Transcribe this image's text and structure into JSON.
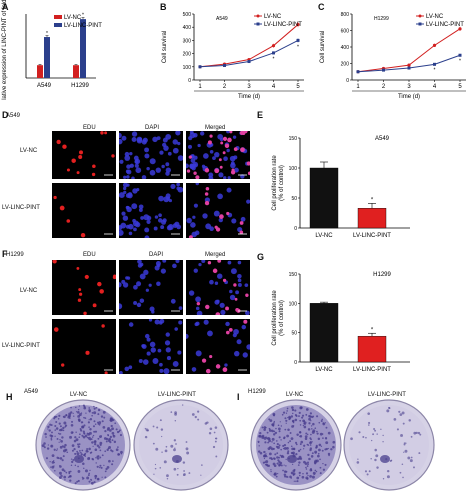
{
  "panel_letters": {
    "A": "A",
    "B": "B",
    "C": "C",
    "D": "D",
    "E": "E",
    "F": "F",
    "G": "G",
    "H": "H",
    "I": "I"
  },
  "micro_d": {
    "cell_line": "A549",
    "columns": [
      "EDU",
      "DAPI",
      "Merged"
    ],
    "rows": [
      "LV-NC",
      "LV-LINC-PINT"
    ]
  },
  "micro_f": {
    "cell_line": "H1299",
    "columns": [
      "EDU",
      "DAPI",
      "Merged"
    ],
    "rows": [
      "LV-NC",
      "LV-LINC-PINT"
    ]
  },
  "colony": {
    "h": {
      "cell_line": "A549",
      "labels": [
        "LV-NC",
        "LV-LINC-PINT"
      ]
    },
    "i": {
      "cell_line": "H1299",
      "labels": [
        "LV-NC",
        "LV-LINC-PINT"
      ]
    }
  },
  "colors": {
    "nc": "#d22020",
    "pint": "#2b3f8c",
    "bar_nc": "#111111",
    "bar_pint": "#e02020",
    "plate": "#b9b3d6",
    "stain": "#4a3f8e"
  },
  "chart_data": [
    {
      "id": "A",
      "type": "bar",
      "ylabel": "Relative expression of LINC-PINT of folds",
      "categories": [
        "A549",
        "H1299"
      ],
      "series": [
        {
          "name": "LV-NC",
          "values": [
            1.0,
            1.0
          ],
          "errors": [
            0.05,
            0.05
          ]
        },
        {
          "name": "LV-LINC-PINT",
          "values": [
            3.2,
            4.6
          ],
          "errors": [
            0.1,
            0.12
          ]
        }
      ],
      "ylim": [
        0,
        5
      ],
      "legend": "top-right",
      "annotations": [
        "*",
        "*"
      ]
    },
    {
      "id": "B",
      "type": "line",
      "title": "A549",
      "xlabel": "Time  (d)",
      "ylabel": "Cell survival",
      "x": [
        1,
        2,
        3,
        4,
        5
      ],
      "series": [
        {
          "name": "LV-NC",
          "values": [
            100,
            120,
            155,
            260,
            420
          ],
          "errors": [
            8,
            8,
            10,
            15,
            20
          ]
        },
        {
          "name": "LV-LINC-PINT",
          "values": [
            100,
            110,
            140,
            205,
            300
          ],
          "errors": [
            8,
            8,
            10,
            12,
            15
          ]
        }
      ],
      "yticks": [
        0,
        100,
        200,
        300,
        400,
        500
      ],
      "ylim": [
        0,
        500
      ],
      "legend": "top-right",
      "annotations": [
        "*",
        "*"
      ]
    },
    {
      "id": "C",
      "type": "line",
      "title": "H1299",
      "xlabel": "Time  (d)",
      "ylabel": "Cell survival",
      "x": [
        1,
        2,
        3,
        4,
        5
      ],
      "series": [
        {
          "name": "LV-NC",
          "values": [
            100,
            140,
            180,
            420,
            620
          ],
          "errors": [
            8,
            10,
            12,
            20,
            25
          ]
        },
        {
          "name": "LV-LINC-PINT",
          "values": [
            100,
            120,
            145,
            190,
            300
          ],
          "errors": [
            8,
            8,
            10,
            12,
            15
          ]
        }
      ],
      "yticks": [
        0,
        200,
        400,
        600,
        800
      ],
      "ylim": [
        0,
        800
      ],
      "legend": "top-right",
      "annotations": [
        "*",
        "*"
      ]
    },
    {
      "id": "E",
      "type": "bar",
      "title": "A549",
      "ylabel": "Cell proliferation rate (% of control)",
      "categories": [
        "LV-NC",
        "LV-LINC-PINT"
      ],
      "values": [
        100,
        33
      ],
      "errors": [
        10,
        8
      ],
      "yticks": [
        0,
        50,
        100,
        150
      ],
      "ylim": [
        0,
        150
      ],
      "annotations": [
        "*"
      ]
    },
    {
      "id": "G",
      "type": "bar",
      "title": "H1299",
      "ylabel": "Cell proliferation rate (% of control)",
      "categories": [
        "LV-NC",
        "LV-LINC-PINT"
      ],
      "values": [
        100,
        44
      ],
      "errors": [
        2,
        5
      ],
      "yticks": [
        0,
        50,
        100,
        150
      ],
      "ylim": [
        0,
        150
      ],
      "annotations": [
        "*"
      ]
    }
  ]
}
